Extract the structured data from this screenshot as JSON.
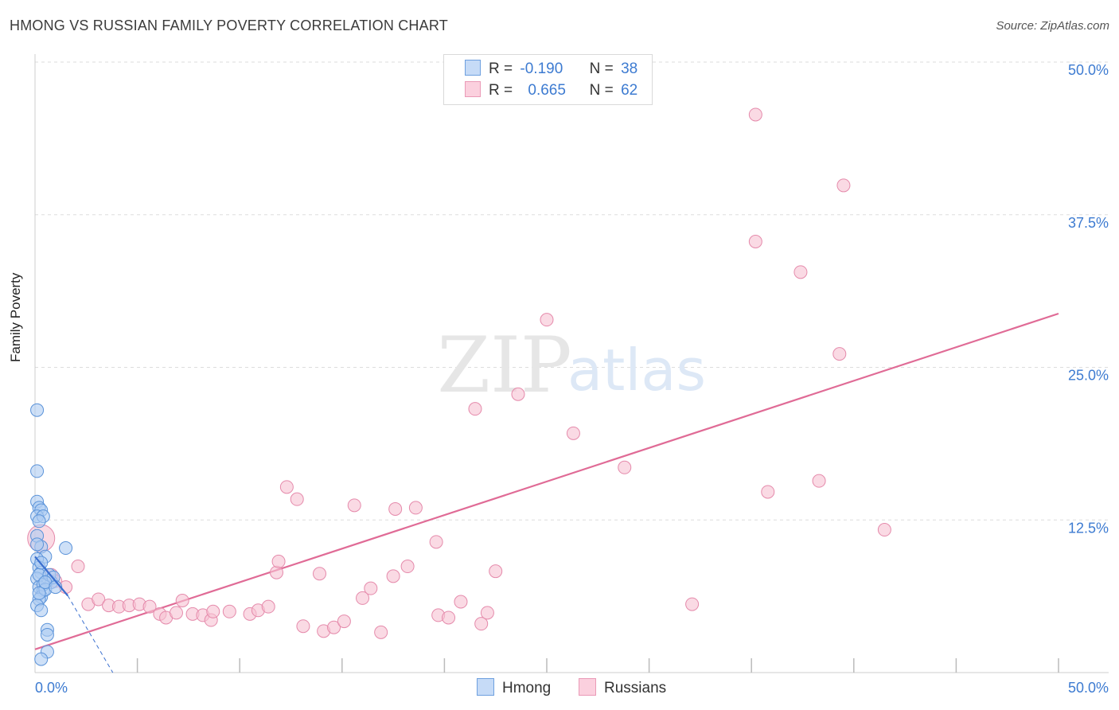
{
  "title": "HMONG VS RUSSIAN FAMILY POVERTY CORRELATION CHART",
  "source": "Source: ZipAtlas.com",
  "watermark": {
    "zip": "ZIP",
    "atlas": "atlas"
  },
  "colors": {
    "hmong_fill": "#aecbf2",
    "hmong_stroke": "#5b93d9",
    "hmong_line": "#3a6fcf",
    "russians_fill": "#f7c1d2",
    "russians_stroke": "#e58aab",
    "russians_line": "#e06b96",
    "value_blue": "#3d7bd1",
    "grid": "#dddddd"
  },
  "legend": {
    "rows": [
      {
        "r_label": "R =",
        "r_value": "-0.190",
        "n_label": "N =",
        "n_value": "38"
      },
      {
        "r_label": "R =",
        "r_value": "0.665",
        "n_label": "N =",
        "n_value": "62"
      }
    ]
  },
  "bottom_legend": [
    "Hmong",
    "Russians"
  ],
  "chart_data": {
    "type": "scatter",
    "title": "HMONG VS RUSSIAN FAMILY POVERTY CORRELATION CHART",
    "xlabel": "",
    "ylabel": "Family Poverty",
    "xlim": [
      0,
      50
    ],
    "ylim": [
      0,
      50
    ],
    "x_tick_labels": [
      "0.0%",
      "50.0%"
    ],
    "y_ticks": [
      12.5,
      25.0,
      37.5,
      50.0
    ],
    "y_tick_labels": [
      "12.5%",
      "25.0%",
      "37.5%",
      "50.0%"
    ],
    "series": [
      {
        "name": "Hmong",
        "r": -0.19,
        "n": 38,
        "trend": {
          "x0": 0.0,
          "y0": 9.5,
          "x1": 1.6,
          "y1": 6.3,
          "dash_to_x": 3.8,
          "dash_to_y": 0.0
        },
        "points": [
          [
            0.1,
            21.5
          ],
          [
            0.1,
            16.5
          ],
          [
            0.1,
            14.0
          ],
          [
            0.2,
            13.5
          ],
          [
            0.3,
            13.3
          ],
          [
            0.1,
            12.8
          ],
          [
            0.4,
            12.8
          ],
          [
            0.2,
            12.4
          ],
          [
            0.1,
            11.2
          ],
          [
            0.3,
            10.3
          ],
          [
            1.5,
            10.2
          ],
          [
            0.5,
            9.5
          ],
          [
            0.1,
            9.3
          ],
          [
            0.2,
            8.6
          ],
          [
            0.3,
            8.2
          ],
          [
            0.1,
            7.7
          ],
          [
            0.6,
            7.5
          ],
          [
            0.8,
            7.4
          ],
          [
            0.2,
            7.0
          ],
          [
            0.4,
            6.7
          ],
          [
            0.3,
            6.2
          ],
          [
            0.2,
            6.0
          ],
          [
            0.1,
            5.5
          ],
          [
            0.3,
            5.1
          ],
          [
            0.6,
            3.5
          ],
          [
            0.6,
            3.1
          ],
          [
            0.6,
            1.7
          ],
          [
            0.3,
            1.1
          ],
          [
            0.2,
            8.0
          ],
          [
            0.4,
            7.2
          ],
          [
            0.5,
            6.8
          ],
          [
            0.2,
            6.5
          ],
          [
            0.7,
            8.0
          ],
          [
            0.1,
            10.5
          ],
          [
            0.9,
            7.8
          ],
          [
            0.3,
            9.0
          ],
          [
            0.5,
            7.4
          ],
          [
            1.0,
            7.0
          ]
        ]
      },
      {
        "name": "Russians",
        "r": 0.665,
        "n": 62,
        "trend": {
          "x0": 0.0,
          "y0": 1.9,
          "x1": 50.0,
          "y1": 29.4
        },
        "points": [
          [
            0.3,
            11.0
          ],
          [
            0.8,
            8.0
          ],
          [
            1.0,
            7.5
          ],
          [
            1.5,
            7.0
          ],
          [
            2.1,
            8.7
          ],
          [
            2.6,
            5.6
          ],
          [
            3.1,
            6.0
          ],
          [
            3.6,
            5.5
          ],
          [
            4.1,
            5.4
          ],
          [
            4.6,
            5.5
          ],
          [
            5.1,
            5.6
          ],
          [
            5.6,
            5.4
          ],
          [
            6.1,
            4.8
          ],
          [
            6.4,
            4.5
          ],
          [
            6.9,
            4.9
          ],
          [
            7.2,
            5.9
          ],
          [
            7.7,
            4.8
          ],
          [
            8.2,
            4.7
          ],
          [
            8.6,
            4.3
          ],
          [
            8.7,
            5.0
          ],
          [
            9.5,
            5.0
          ],
          [
            10.5,
            4.8
          ],
          [
            10.9,
            5.1
          ],
          [
            11.4,
            5.4
          ],
          [
            11.8,
            8.2
          ],
          [
            11.9,
            9.1
          ],
          [
            12.3,
            15.2
          ],
          [
            12.8,
            14.2
          ],
          [
            13.1,
            3.8
          ],
          [
            13.9,
            8.1
          ],
          [
            14.1,
            3.4
          ],
          [
            14.6,
            3.7
          ],
          [
            15.1,
            4.2
          ],
          [
            15.6,
            13.7
          ],
          [
            16.0,
            6.1
          ],
          [
            16.4,
            6.9
          ],
          [
            16.9,
            3.3
          ],
          [
            17.5,
            7.9
          ],
          [
            17.6,
            13.4
          ],
          [
            18.2,
            8.7
          ],
          [
            18.6,
            13.5
          ],
          [
            19.6,
            10.7
          ],
          [
            19.7,
            4.7
          ],
          [
            20.2,
            4.5
          ],
          [
            20.8,
            5.8
          ],
          [
            21.5,
            21.6
          ],
          [
            21.8,
            4.0
          ],
          [
            22.1,
            4.9
          ],
          [
            22.5,
            8.3
          ],
          [
            23.6,
            22.8
          ],
          [
            25.0,
            28.9
          ],
          [
            26.3,
            19.6
          ],
          [
            28.8,
            16.8
          ],
          [
            32.1,
            5.6
          ],
          [
            35.2,
            35.3
          ],
          [
            35.2,
            45.7
          ],
          [
            35.8,
            14.8
          ],
          [
            37.4,
            32.8
          ],
          [
            38.3,
            15.7
          ],
          [
            39.3,
            26.1
          ],
          [
            39.5,
            39.9
          ],
          [
            41.5,
            11.7
          ]
        ]
      }
    ]
  }
}
